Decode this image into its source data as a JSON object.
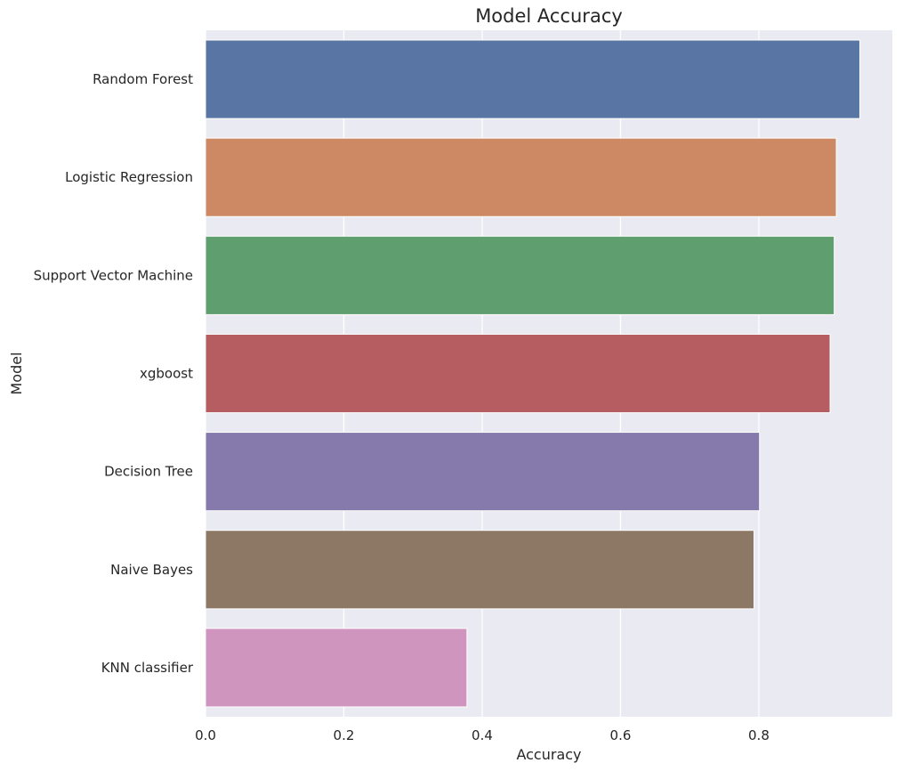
{
  "chart_data": {
    "type": "bar",
    "orientation": "horizontal",
    "title": "Model Accuracy",
    "xlabel": "Accuracy",
    "ylabel": "Model",
    "categories": [
      "Random Forest",
      "Logistic Regression",
      "Support Vector Machine",
      "xgboost",
      "Decision Tree",
      "Naive Bayes",
      "KNN classifier"
    ],
    "values": [
      0.946,
      0.912,
      0.909,
      0.903,
      0.801,
      0.793,
      0.378
    ],
    "colors": [
      "#5975a4",
      "#cc8963",
      "#5f9e6e",
      "#b55d60",
      "#857aab",
      "#8d7866",
      "#d095bf"
    ],
    "xlim": [
      0,
      0.993
    ],
    "xticks": [
      0.0,
      0.2,
      0.4,
      0.6,
      0.8
    ],
    "xtick_labels": [
      "0.0",
      "0.2",
      "0.4",
      "0.6",
      "0.8"
    ],
    "grid": true,
    "background": "#eaeaf2",
    "gridline_color": "#ffffff"
  }
}
